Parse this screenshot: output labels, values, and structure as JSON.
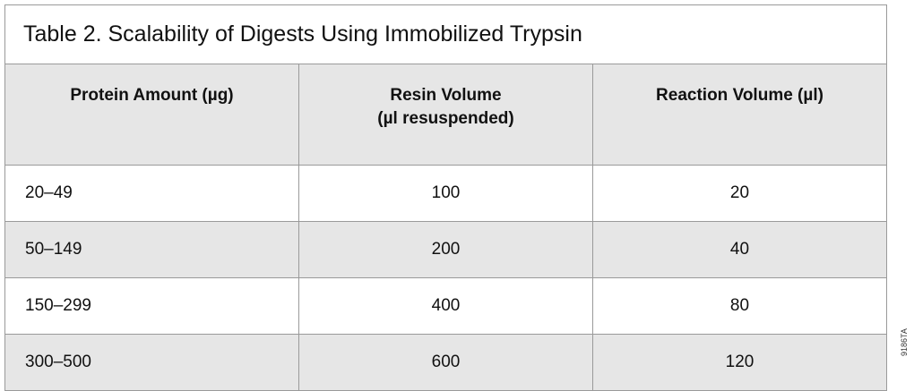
{
  "table": {
    "title": "Table 2. Scalability of Digests Using Immobilized Trypsin",
    "headers": [
      "Protein Amount (µg)",
      "Resin Volume\n(µl resuspended)",
      "Reaction Volume (µl)"
    ],
    "header_lines": {
      "resin_1": "Resin Volume",
      "resin_2": "(µl resuspended)"
    },
    "rows": [
      [
        "20–49",
        "100",
        "20"
      ],
      [
        "50–149",
        "200",
        "40"
      ],
      [
        "150–299",
        "400",
        "80"
      ],
      [
        "300–500",
        "600",
        "120"
      ]
    ]
  },
  "figure_code": "9186TA",
  "colors": {
    "header_bg": "#e6e6e6",
    "border": "#9a9a9a"
  }
}
